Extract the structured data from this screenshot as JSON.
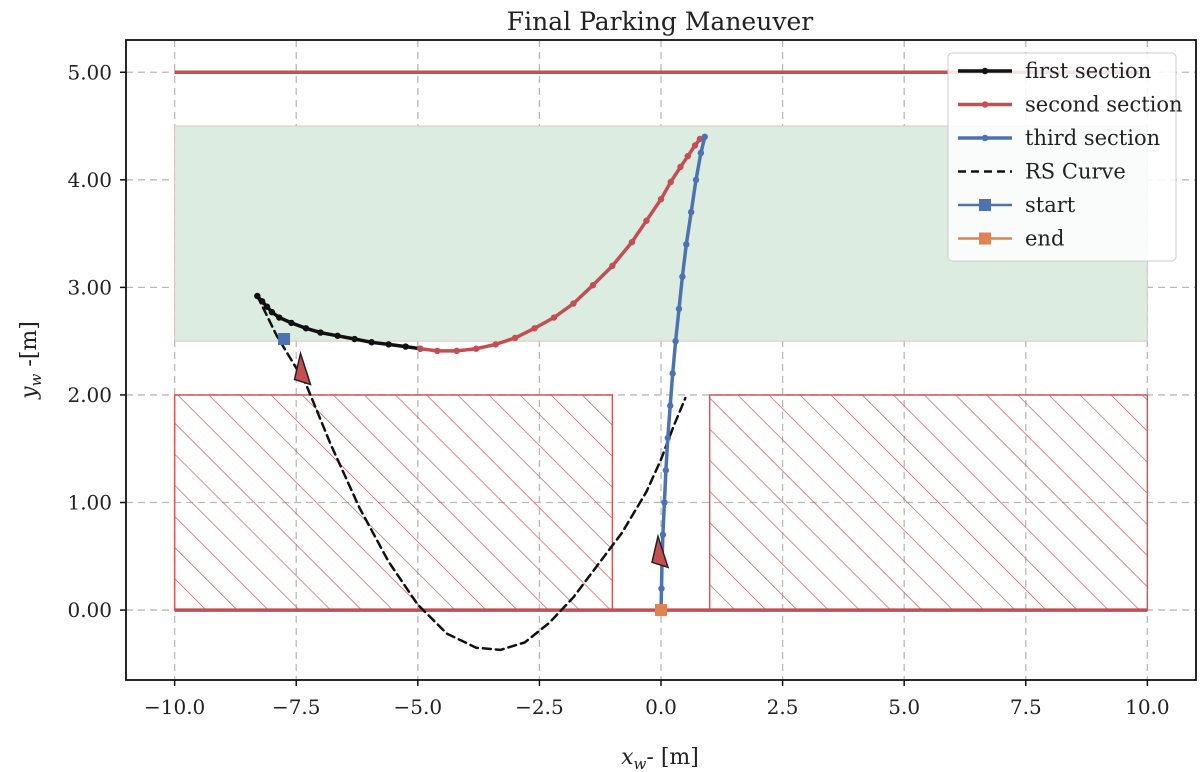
{
  "chart_data": {
    "type": "line",
    "title": "Final Parking Maneuver",
    "xlabel": "x",
    "xlabel_sub": "w",
    "xlabel_unit": "- [m]",
    "ylabel": "y",
    "ylabel_sub": "w",
    "ylabel_unit": " -[m]",
    "xlim": [
      -11.0,
      11.0
    ],
    "ylim": [
      -0.65,
      5.3
    ],
    "xticks": [
      -10.0,
      -7.5,
      -5.0,
      -2.5,
      0.0,
      2.5,
      5.0,
      7.5,
      10.0
    ],
    "xtick_labels": [
      "−10.0",
      "−7.5",
      "−5.0",
      "−2.5",
      "0.0",
      "2.5",
      "5.0",
      "7.5",
      "10.0"
    ],
    "yticks": [
      0.0,
      1.0,
      2.0,
      3.0,
      4.0,
      5.0
    ],
    "ytick_labels": [
      "0.00",
      "1.00",
      "2.00",
      "3.00",
      "4.00",
      "5.00"
    ],
    "grid": true,
    "legend_position": "top-right",
    "legend": [
      {
        "label": "first section",
        "color": "#111111",
        "kind": "line-dot"
      },
      {
        "label": "second section",
        "color": "#c44e52",
        "kind": "line-dot"
      },
      {
        "label": "third section",
        "color": "#4c72b0",
        "kind": "line-dot"
      },
      {
        "label": "RS Curve",
        "color": "#111111",
        "kind": "dashed"
      },
      {
        "label": "start",
        "color": "#4c72b0",
        "kind": "square"
      },
      {
        "label": "end",
        "color": "#dd8452",
        "kind": "square"
      }
    ],
    "colors": {
      "first": "#111111",
      "second": "#c44e52",
      "third": "#4c72b0",
      "rs": "#111111",
      "start": "#4c72b0",
      "end": "#dd8452",
      "parking_zone_fill": "#dcece0",
      "obstacle": "#d0575a",
      "road_line": "#c44e52"
    },
    "regions": {
      "green_zone": {
        "x": [
          -10.0,
          10.0
        ],
        "y": [
          2.5,
          4.5
        ]
      },
      "obstacles": [
        {
          "x": [
            -10.0,
            -1.0
          ],
          "y": [
            0.0,
            2.0
          ]
        },
        {
          "x": [
            1.0,
            10.0
          ],
          "y": [
            0.0,
            2.0
          ]
        }
      ],
      "upper_line": {
        "x": [
          -10.0,
          10.0
        ],
        "y": 5.0
      },
      "lower_line": {
        "x": [
          -10.0,
          10.0
        ],
        "y": 0.0
      }
    },
    "series": [
      {
        "name": "first section",
        "x": [
          -8.3,
          -8.2,
          -8.1,
          -8.0,
          -7.85,
          -7.6,
          -7.3,
          -7.0,
          -6.65,
          -6.3,
          -5.95,
          -5.6,
          -5.25,
          -4.95
        ],
        "y": [
          2.92,
          2.87,
          2.82,
          2.77,
          2.72,
          2.67,
          2.62,
          2.58,
          2.55,
          2.52,
          2.49,
          2.47,
          2.45,
          2.43
        ]
      },
      {
        "name": "second section",
        "x": [
          -4.95,
          -4.6,
          -4.2,
          -3.8,
          -3.4,
          -3.0,
          -2.6,
          -2.2,
          -1.8,
          -1.4,
          -1.0,
          -0.6,
          -0.3,
          0.0,
          0.2,
          0.4,
          0.55,
          0.7,
          0.8
        ],
        "y": [
          2.43,
          2.41,
          2.41,
          2.43,
          2.47,
          2.53,
          2.62,
          2.72,
          2.85,
          3.02,
          3.2,
          3.42,
          3.62,
          3.82,
          3.98,
          4.12,
          4.22,
          4.32,
          4.38
        ]
      },
      {
        "name": "third section",
        "x": [
          0.9,
          0.82,
          0.72,
          0.62,
          0.52,
          0.44,
          0.37,
          0.3,
          0.24,
          0.19,
          0.14,
          0.1,
          0.07,
          0.04,
          0.02,
          0.01,
          0.0
        ],
        "y": [
          4.4,
          4.25,
          4.0,
          3.7,
          3.4,
          3.1,
          2.8,
          2.5,
          2.2,
          1.9,
          1.6,
          1.3,
          1.0,
          0.7,
          0.45,
          0.2,
          0.0
        ]
      },
      {
        "name": "RS Curve",
        "x": [
          -8.3,
          -7.9,
          -7.3,
          -6.8,
          -6.2,
          -5.6,
          -5.0,
          -4.4,
          -3.8,
          -3.3,
          -2.8,
          -2.3,
          -1.8,
          -1.3,
          -0.8,
          -0.3,
          0.0,
          0.25,
          0.5
        ],
        "y": [
          2.92,
          2.55,
          2.1,
          1.55,
          0.95,
          0.45,
          0.05,
          -0.22,
          -0.35,
          -0.37,
          -0.3,
          -0.12,
          0.12,
          0.42,
          0.72,
          1.1,
          1.4,
          1.7,
          1.97
        ]
      }
    ],
    "markers": {
      "start": {
        "x": -7.75,
        "y": 2.52
      },
      "end": {
        "x": 0.0,
        "y": 0.0
      },
      "arrows": [
        {
          "x": -7.35,
          "y": 2.2,
          "color": "#c44e52"
        },
        {
          "x": 0.0,
          "y": 0.5,
          "color": "#c44e52"
        }
      ]
    }
  }
}
